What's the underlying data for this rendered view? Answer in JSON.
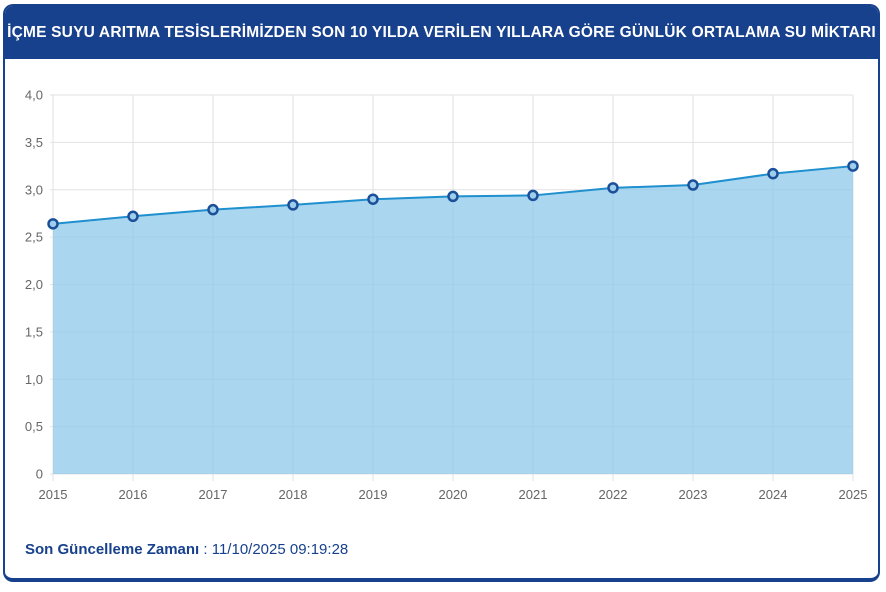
{
  "footer": {
    "label": "Son Güncelleme Zamanı",
    "separator": " : ",
    "value": "11/10/2025 09:19:28"
  },
  "chart_data": {
    "type": "area",
    "title": "İÇME SUYU ARITMA TESİSLERİMİZDEN SON 10 YILDA VERİLEN YILLARA GÖRE GÜNLÜK ORTALAMA SU MİKTARI",
    "x": [
      2015,
      2016,
      2017,
      2018,
      2019,
      2020,
      2021,
      2022,
      2023,
      2024,
      2025
    ],
    "x_tick_labels": [
      "2015",
      "2016",
      "2017",
      "2018",
      "2019",
      "2020",
      "2021",
      "2022",
      "2023",
      "2024",
      "2025"
    ],
    "values": [
      2.64,
      2.72,
      2.79,
      2.84,
      2.9,
      2.93,
      2.94,
      3.02,
      3.05,
      3.17,
      3.25
    ],
    "xlabel": "",
    "ylabel": "",
    "ylim": [
      0,
      4
    ],
    "y_ticks": [
      4.0,
      3.5,
      3.0,
      2.5,
      2.0,
      1.5,
      1.0,
      0.5,
      0
    ],
    "y_tick_labels": [
      "4,0",
      "3,5",
      "3,0",
      "2,5",
      "2,0",
      "1,5",
      "1,0",
      "0,5",
      "0"
    ],
    "grid": true,
    "legend": false,
    "colors": {
      "header_bg": "#17418c",
      "line": "#1f8fce",
      "area_fill": "rgba(141,200,235,0.75)",
      "marker_fill": "#9fcdec",
      "marker_stroke": "#1b5099",
      "grid": "#e2e2e2",
      "tick_text": "#666666"
    }
  }
}
